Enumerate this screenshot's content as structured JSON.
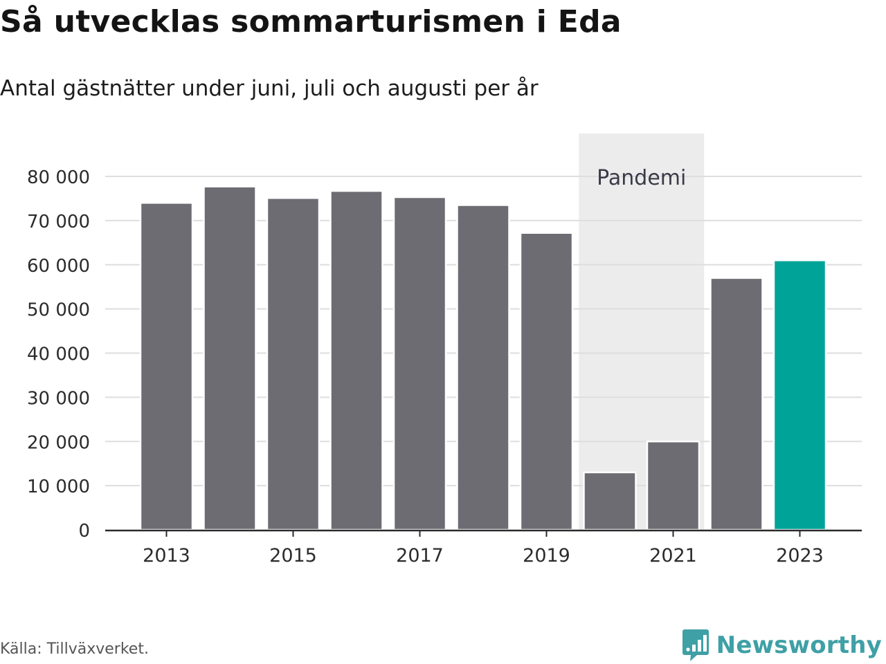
{
  "header": {
    "title": "Så utvecklas sommarturismen i Eda",
    "subtitle": "Antal gästnätter under juni, juli och augusti per år"
  },
  "footer": {
    "source": "Källa: Tillväxverket.",
    "brand": "Newsworthy"
  },
  "colors": {
    "bar": "#6d6c73",
    "highlight": "#00a398",
    "shade": "#ececec",
    "grid": "#dedede",
    "axis": "#2a2a2a",
    "brand": "#3fa0a6"
  },
  "chart_data": {
    "type": "bar",
    "title": "Så utvecklas sommarturismen i Eda",
    "subtitle": "Antal gästnätter under juni, juli och augusti per år",
    "categories": [
      "2013",
      "2014",
      "2015",
      "2016",
      "2017",
      "2018",
      "2019",
      "2020",
      "2021",
      "2022",
      "2023"
    ],
    "values": [
      74000,
      77700,
      75100,
      76700,
      75300,
      73500,
      67200,
      13000,
      20000,
      57000,
      61000
    ],
    "highlighted_category": "2023",
    "x_tick_labels": [
      "2013",
      "2015",
      "2017",
      "2019",
      "2021",
      "2023"
    ],
    "y_ticks": [
      0,
      10000,
      20000,
      30000,
      40000,
      50000,
      60000,
      70000,
      80000
    ],
    "y_tick_labels": [
      "0",
      "10 000",
      "20 000",
      "30 000",
      "40 000",
      "50 000",
      "60 000",
      "70 000",
      "80 000"
    ],
    "ylim": [
      0,
      80000
    ],
    "grid": "horizontal",
    "annotation": {
      "label": "Pandemi",
      "from": "2020",
      "to": "2021"
    },
    "xlabel": "",
    "ylabel": ""
  }
}
